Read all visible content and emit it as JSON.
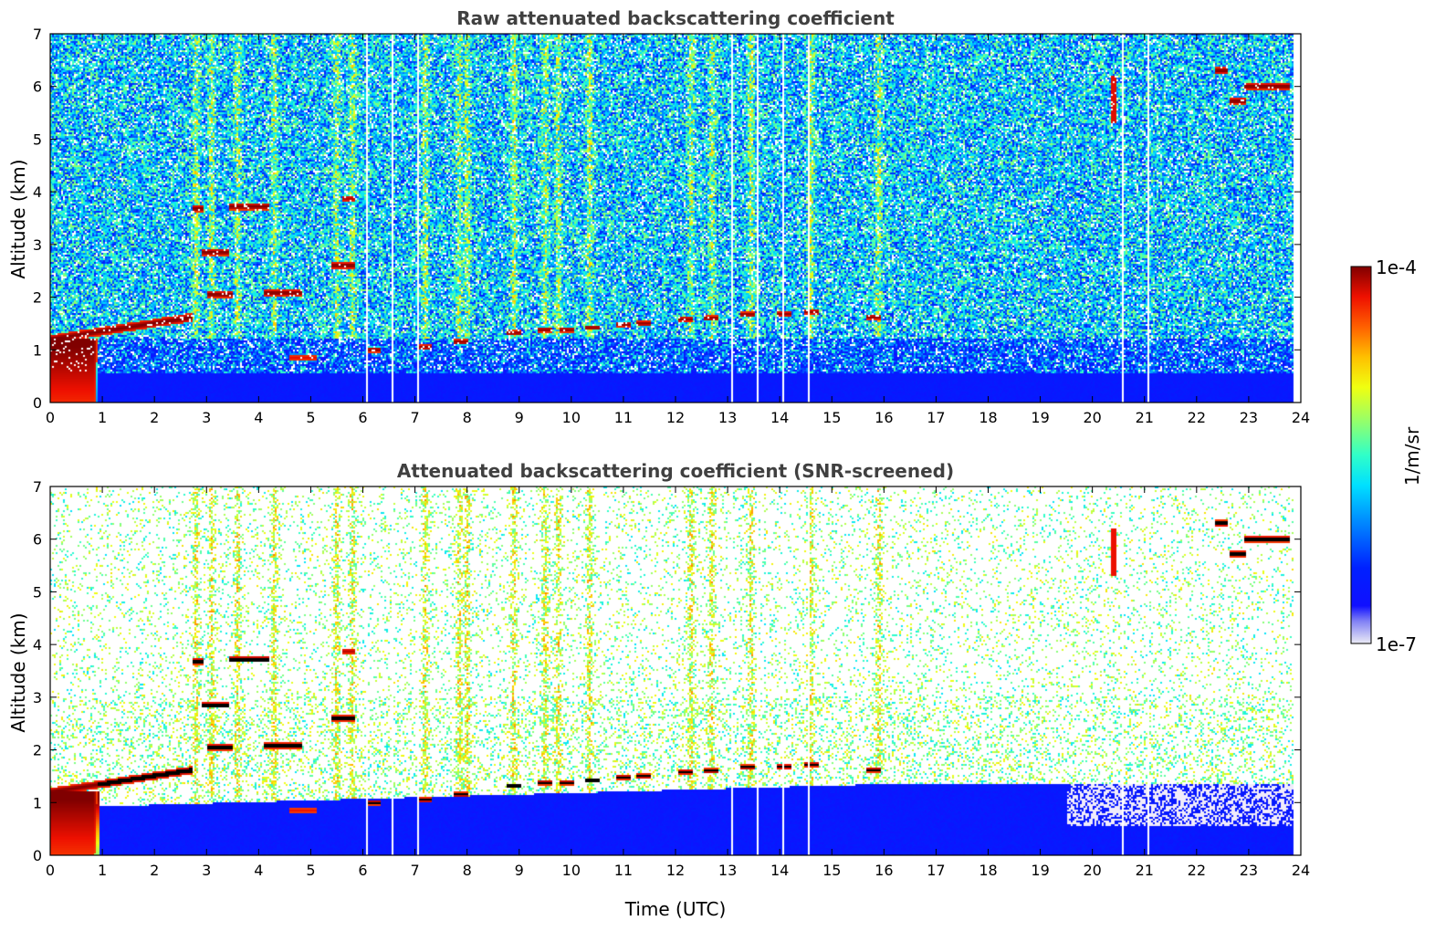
{
  "chart_data": [
    {
      "type": "heatmap",
      "title": "Raw attenuated backscattering coefficient",
      "xlabel": "",
      "ylabel": "Altitude (km)",
      "xlim": [
        0,
        24
      ],
      "ylim": [
        0,
        7
      ],
      "x_ticks": [
        0,
        1,
        2,
        3,
        4,
        5,
        6,
        7,
        8,
        9,
        10,
        11,
        12,
        13,
        14,
        15,
        16,
        17,
        18,
        19,
        20,
        21,
        22,
        23,
        24
      ],
      "y_ticks": [
        0,
        1,
        2,
        3,
        4,
        5,
        6,
        7
      ],
      "x_tick_labels": [
        "0",
        "1",
        "2",
        "3",
        "4",
        "5",
        "6",
        "7",
        "8",
        "9",
        "10",
        "11",
        "12",
        "13",
        "14",
        "15",
        "16",
        "17",
        "18",
        "19",
        "20",
        "21",
        "22",
        "23",
        "24"
      ],
      "y_tick_labels": [
        "0",
        "1",
        "2",
        "3",
        "4",
        "5",
        "6",
        "7"
      ],
      "data_x_end": 23.85,
      "background_noise": "dense speckle, high-altitude noise green/cyan, near-surface strong blue",
      "gaps_utc": [
        6.07,
        6.57,
        7.07,
        13.07,
        13.57,
        14.07,
        14.57,
        20.57,
        21.07
      ],
      "features": [
        {
          "name": "boundary-layer-top",
          "t0": 0.0,
          "t1": 2.75,
          "z0": 1.18,
          "z1": 1.65,
          "level": "high"
        },
        {
          "name": "near-surface-aerosol",
          "t0": 0.0,
          "t1": 0.95,
          "z0": 0.0,
          "z1": 1.2,
          "level": "high"
        },
        {
          "name": "cloud-3.7km-a",
          "t0": 2.75,
          "t1": 2.95,
          "z": 3.68,
          "level": "high"
        },
        {
          "name": "cloud-3.7km-b",
          "t0": 3.45,
          "t1": 4.2,
          "z": 3.72,
          "level": "high"
        },
        {
          "name": "cloud-2.8km",
          "t0": 2.9,
          "t1": 3.45,
          "z": 2.85,
          "level": "high"
        },
        {
          "name": "cloud-2.0km-a",
          "t0": 3.0,
          "t1": 3.5,
          "z": 2.05,
          "level": "high"
        },
        {
          "name": "cloud-2.0km-b",
          "t0": 4.1,
          "t1": 4.85,
          "z": 2.08,
          "level": "high"
        },
        {
          "name": "cloud-2.6km",
          "t0": 5.4,
          "t1": 5.85,
          "z": 2.6,
          "level": "high"
        },
        {
          "name": "cloud-3.9km",
          "t0": 5.6,
          "t1": 5.85,
          "z": 3.87,
          "level": "mid-high"
        },
        {
          "name": "low-cloud-0.85km",
          "t0": 4.6,
          "t1": 5.1,
          "z": 0.85,
          "level": "mid"
        },
        {
          "name": "cloud-6.3km",
          "t0": 22.35,
          "t1": 22.6,
          "z": 6.3,
          "level": "high"
        },
        {
          "name": "cloud-6.0km",
          "t0": 22.9,
          "t1": 23.8,
          "z": 6.0,
          "level": "high"
        },
        {
          "name": "cloud-5.7km",
          "t0": 22.65,
          "t1": 22.95,
          "z": 5.72,
          "level": "high"
        },
        {
          "name": "virga-20.4",
          "t0": 20.35,
          "t1": 20.45,
          "z0": 5.3,
          "z1": 6.2,
          "level": "mid"
        }
      ],
      "pbl_clouds": [
        [
          6.2,
          1.0
        ],
        [
          7.2,
          1.05
        ],
        [
          7.9,
          1.15
        ],
        [
          8.9,
          1.32
        ],
        [
          9.5,
          1.38
        ],
        [
          9.9,
          1.38
        ],
        [
          10.4,
          1.42
        ],
        [
          11.0,
          1.48
        ],
        [
          11.4,
          1.5
        ],
        [
          12.2,
          1.58
        ],
        [
          12.7,
          1.6
        ],
        [
          13.4,
          1.67
        ],
        [
          14.1,
          1.68
        ],
        [
          14.6,
          1.72
        ],
        [
          15.8,
          1.62
        ]
      ],
      "precip_streaks_utc": [
        2.8,
        3.1,
        3.6,
        4.3,
        5.5,
        5.8,
        7.2,
        7.85,
        8.0,
        8.9,
        9.5,
        9.75,
        10.35,
        12.3,
        12.7,
        13.45,
        14.6,
        15.9
      ]
    },
    {
      "type": "heatmap",
      "title": "Attenuated backscattering coefficient (SNR-screened)",
      "xlabel": "Time (UTC)",
      "ylabel": "Altitude (km)",
      "xlim": [
        0,
        24
      ],
      "ylim": [
        0,
        7
      ],
      "x_ticks": [
        0,
        1,
        2,
        3,
        4,
        5,
        6,
        7,
        8,
        9,
        10,
        11,
        12,
        13,
        14,
        15,
        16,
        17,
        18,
        19,
        20,
        21,
        22,
        23,
        24
      ],
      "y_ticks": [
        0,
        1,
        2,
        3,
        4,
        5,
        6,
        7
      ],
      "x_tick_labels": [
        "0",
        "1",
        "2",
        "3",
        "4",
        "5",
        "6",
        "7",
        "8",
        "9",
        "10",
        "11",
        "12",
        "13",
        "14",
        "15",
        "16",
        "17",
        "18",
        "19",
        "20",
        "21",
        "22",
        "23",
        "24"
      ],
      "y_tick_labels": [
        "0",
        "1",
        "2",
        "3",
        "4",
        "5",
        "6",
        "7"
      ],
      "data_x_end": 23.85,
      "background_noise": "sparse speckle after SNR screening, black where saturated",
      "gaps_utc": [
        6.07,
        6.57,
        7.07,
        13.07,
        13.57,
        14.07,
        14.57,
        20.57,
        21.07
      ]
    }
  ],
  "colorbar": {
    "label": "1/m/sr",
    "max_label": "1e-4",
    "min_label": "1e-7",
    "scale": "log",
    "range": [
      1e-07,
      0.0001
    ],
    "colormap": "jet"
  }
}
